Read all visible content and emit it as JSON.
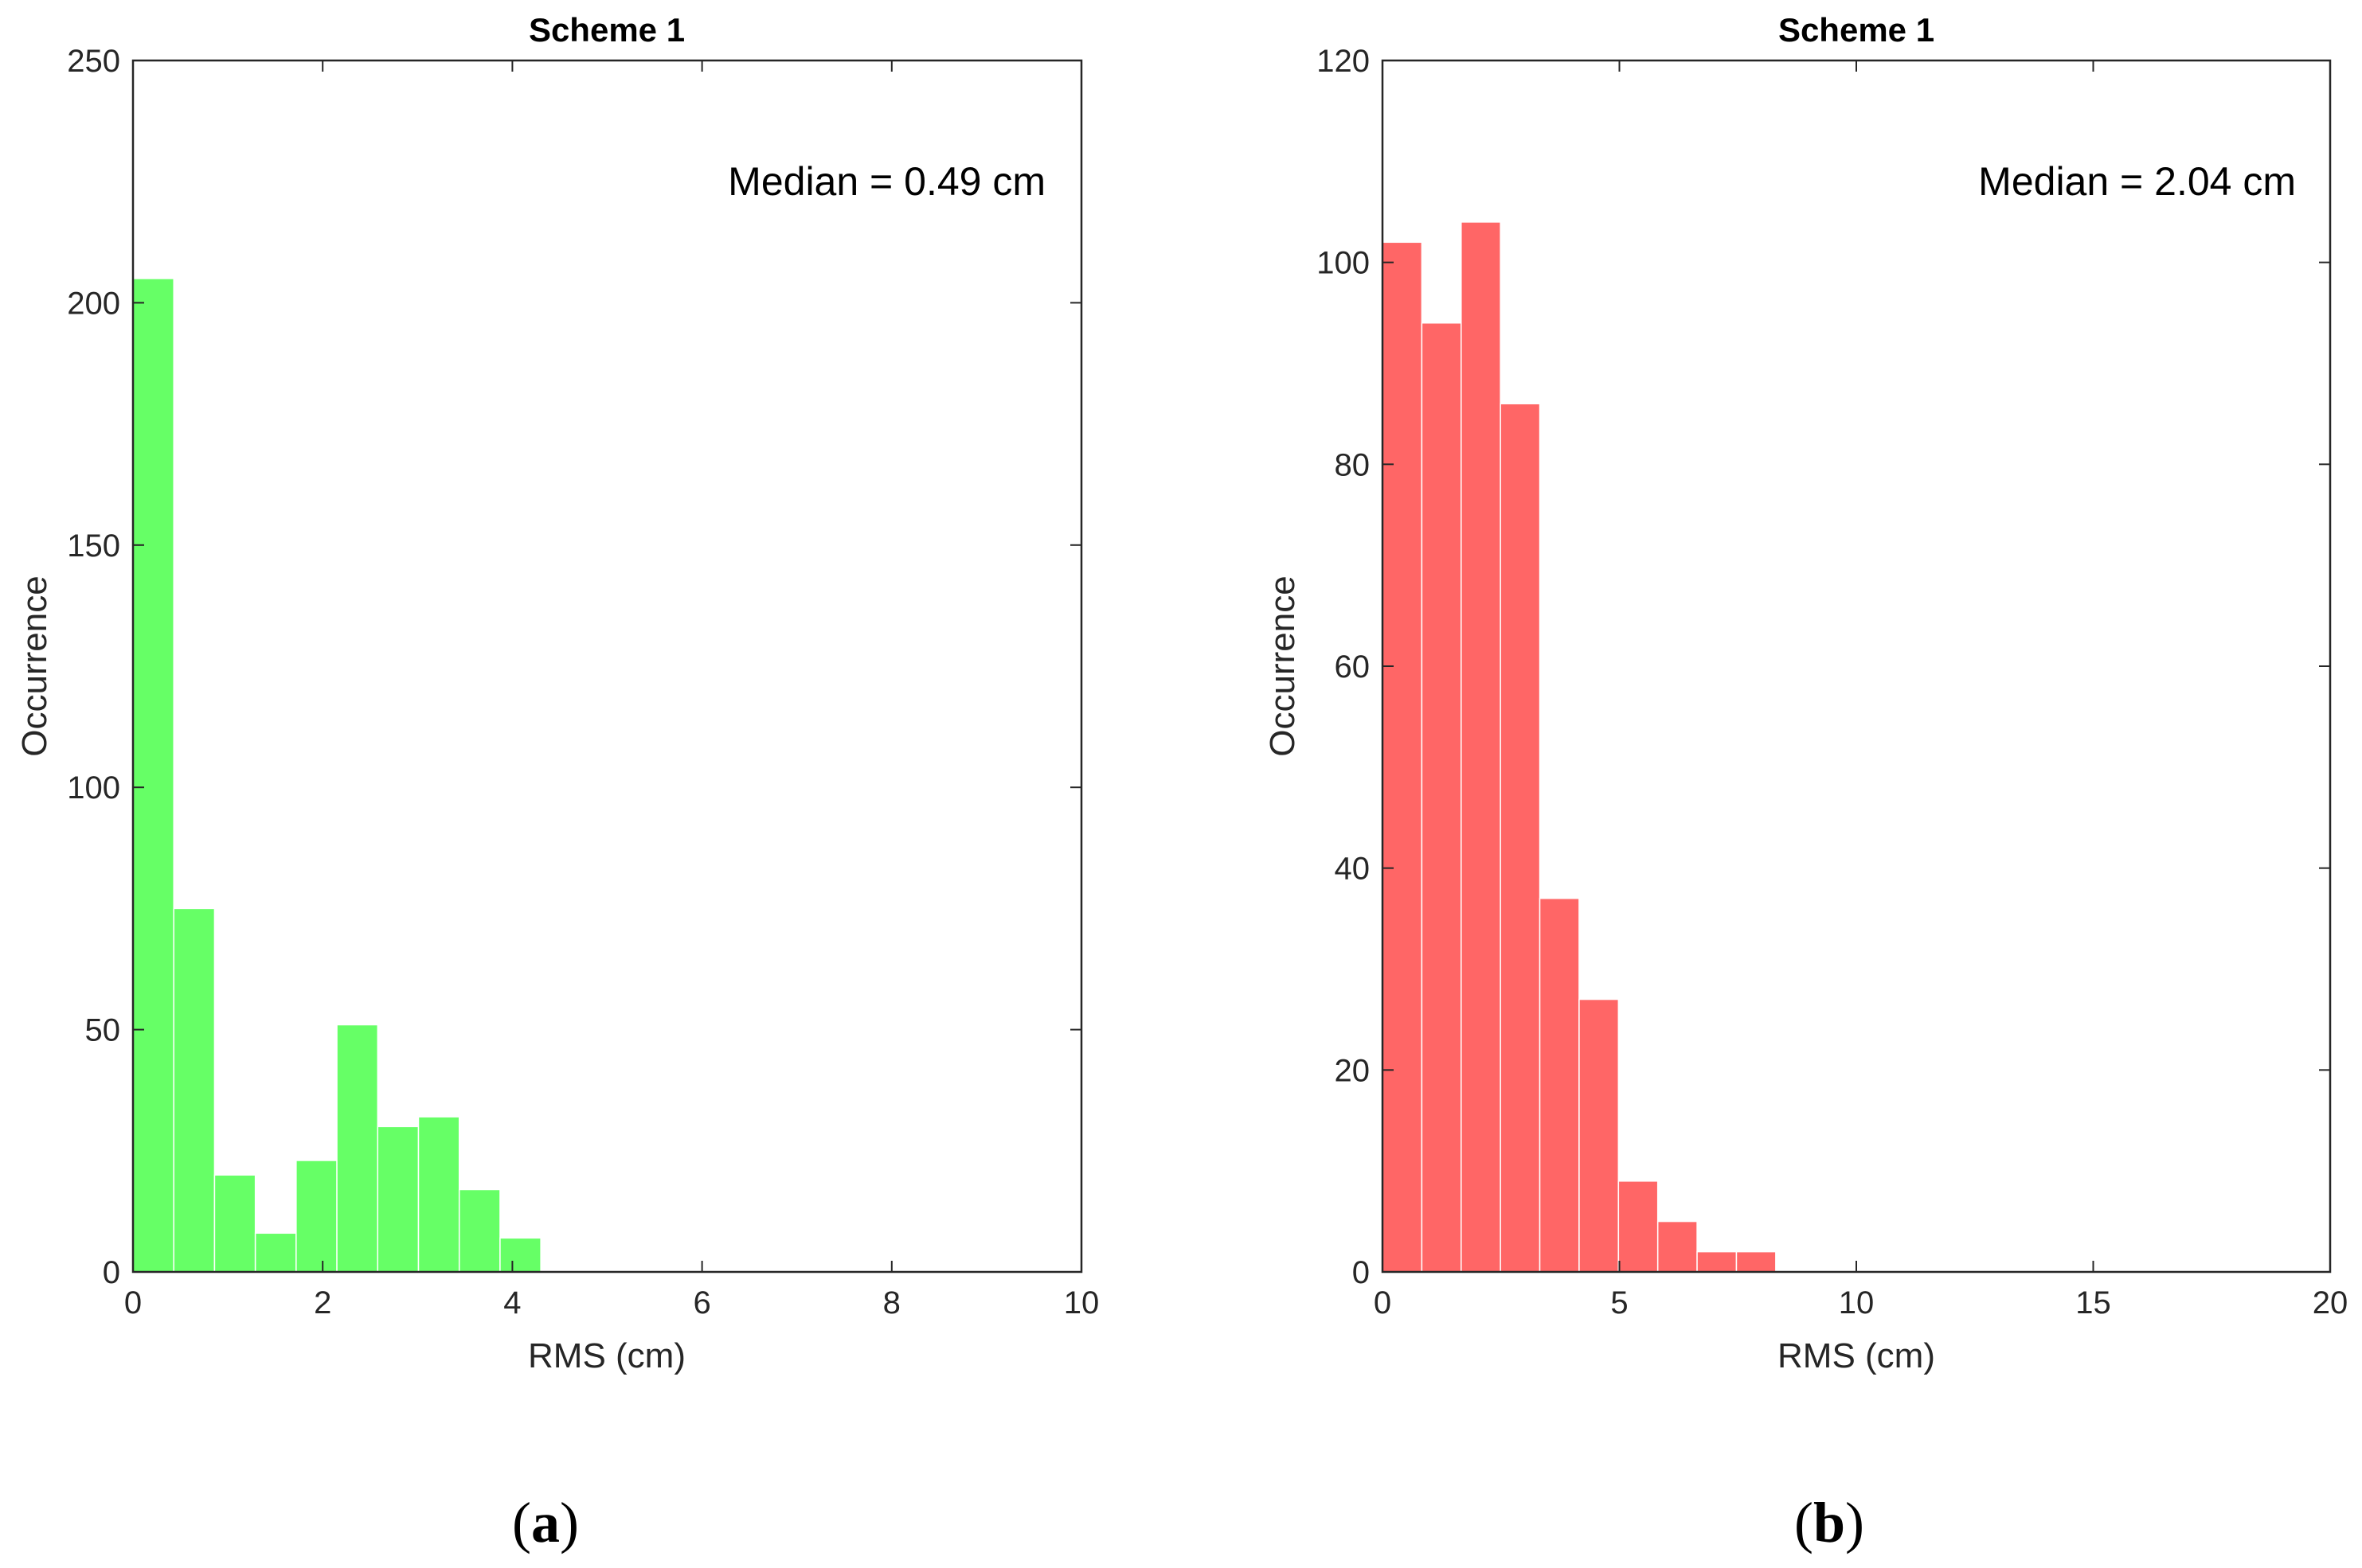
{
  "chart_data": [
    {
      "type": "bar",
      "panel_label": "a",
      "title": "Scheme 1",
      "xlabel": "RMS (cm)",
      "ylabel": "Occurrence",
      "xlim": [
        0,
        10
      ],
      "ylim": [
        0,
        250
      ],
      "xticks": [
        "0",
        "2",
        "4",
        "6",
        "8",
        "10"
      ],
      "xtick_values": [
        0,
        2,
        4,
        6,
        8,
        10
      ],
      "yticks": [
        "0",
        "50",
        "100",
        "150",
        "200",
        "250"
      ],
      "ytick_values": [
        0,
        50,
        100,
        150,
        200,
        250
      ],
      "annotation": "Median = 0.49 cm",
      "annotation_position": "top-right",
      "bar_color": "#66ff66",
      "bin_edges": [
        0,
        0.43,
        0.86,
        1.29,
        1.72,
        2.15,
        2.58,
        3.01,
        3.44,
        3.87,
        4.3
      ],
      "values": [
        205,
        75,
        20,
        8,
        23,
        51,
        30,
        32,
        17,
        7
      ]
    },
    {
      "type": "bar",
      "panel_label": "b",
      "title": "Scheme 1",
      "xlabel": "RMS (cm)",
      "ylabel": "Occurrence",
      "xlim": [
        0,
        20
      ],
      "ylim": [
        0,
        120
      ],
      "xticks": [
        "0",
        "5",
        "10",
        "15",
        "20"
      ],
      "xtick_values": [
        0,
        5,
        10,
        15,
        20
      ],
      "yticks": [
        "0",
        "20",
        "40",
        "60",
        "80",
        "100",
        "120"
      ],
      "ytick_values": [
        0,
        20,
        40,
        60,
        80,
        100,
        120
      ],
      "annotation": "Median = 2.04 cm",
      "annotation_position": "top-right",
      "bar_color": "#ff6666",
      "bin_edges": [
        0,
        0.83,
        1.66,
        2.49,
        3.32,
        4.15,
        4.98,
        5.81,
        6.64,
        7.47,
        8.3
      ],
      "values": [
        102,
        94,
        104,
        86,
        37,
        27,
        9,
        5,
        2,
        2
      ]
    }
  ]
}
